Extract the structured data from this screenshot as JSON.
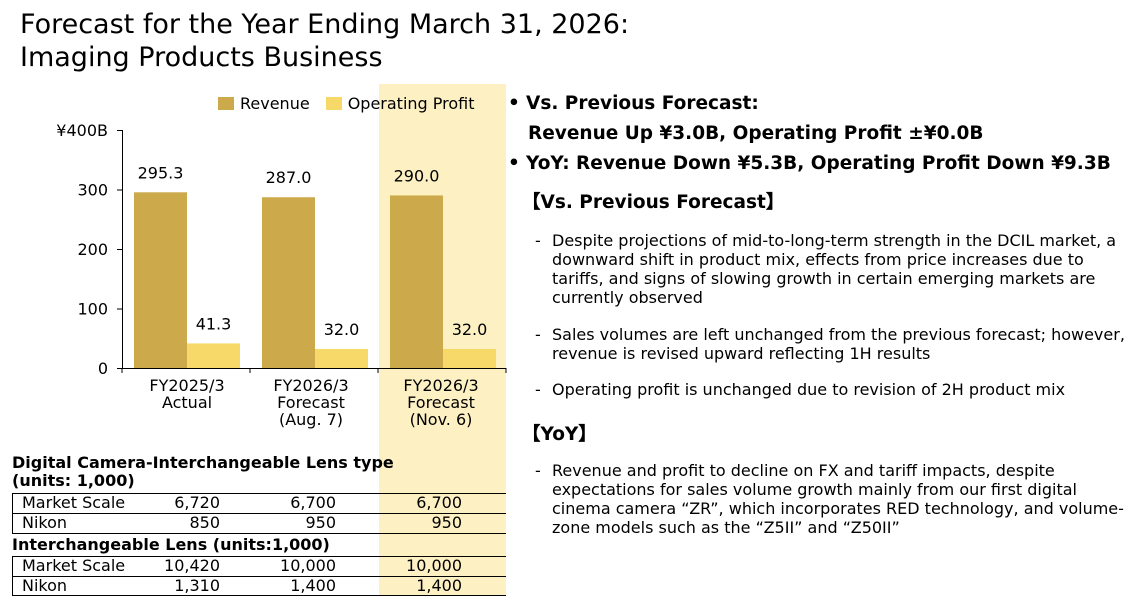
{
  "header": {
    "title_line1": "Forecast for the Year Ending March 31, 2026:",
    "title_line2": "Imaging Products Business"
  },
  "colors": {
    "revenue": "#cca94a",
    "operating_profit": "#f7d96a",
    "highlight": "#fdf1c4"
  },
  "chart_data": {
    "type": "bar",
    "categories": [
      "FY2025/3 Actual",
      "FY2026/3 Forecast (Aug. 7)",
      "FY2026/3 Forecast (Nov. 6)"
    ],
    "category_lines": [
      [
        "FY2025/3",
        "Actual"
      ],
      [
        "FY2026/3",
        "Forecast",
        "(Aug. 7)"
      ],
      [
        "FY2026/3",
        "Forecast",
        "(Nov. 6)"
      ]
    ],
    "series": [
      {
        "name": "Revenue",
        "values": [
          295.3,
          287.0,
          290.0
        ],
        "labels": [
          "295.3",
          "287.0",
          "290.0"
        ]
      },
      {
        "name": "Operating Profit",
        "values": [
          41.3,
          32.0,
          32.0
        ],
        "labels": [
          "41.3",
          "32.0",
          "32.0"
        ]
      }
    ],
    "yticks": [
      "¥400B",
      "300",
      "200",
      "100",
      "0"
    ],
    "ytick_values": [
      400,
      300,
      200,
      100,
      0
    ],
    "ylim": [
      0,
      400
    ],
    "legend_position": "top"
  },
  "tables": [
    {
      "title_line1": "Digital Camera-Interchangeable Lens type",
      "title_line2": "(units: 1,000)",
      "rows": [
        {
          "label": "Market Scale",
          "v1": "6,720",
          "v2": "6,700",
          "v3": "6,700"
        },
        {
          "label": "Nikon",
          "v1": "850",
          "v2": "950",
          "v3": "950"
        }
      ]
    },
    {
      "title_line1": "Interchangeable Lens (units:1,000)",
      "rows": [
        {
          "label": "Market Scale",
          "v1": "10,420",
          "v2": "10,000",
          "v3": "10,000"
        },
        {
          "label": "Nikon",
          "v1": "1,310",
          "v2": "1,400",
          "v3": "1,400"
        }
      ]
    }
  ],
  "summary": {
    "bullet1_line1": "Vs. Previous Forecast:",
    "bullet1_line2": "Revenue Up ¥3.0B, Operating Profit ±¥0.0B",
    "bullet2": "YoY: Revenue Down ¥5.3B, Operating Profit Down ¥9.3B",
    "bullet_glyph": "•",
    "dash_glyph": "-"
  },
  "vs_previous": {
    "heading": "【Vs. Previous Forecast】",
    "items": [
      "Despite projections of mid-to-long-term strength in the DCIL market, a downward shift in product mix, effects from price increases due to tariffs, and signs of slowing growth in certain emerging markets are currently observed",
      "Sales volumes are left unchanged from the previous forecast; however, revenue is revised upward reflecting 1H results",
      "Operating profit is unchanged due to revision of 2H product mix"
    ]
  },
  "yoy": {
    "heading": "【YoY】",
    "items": [
      "Revenue and profit to decline on FX and tariff impacts, despite expectations for sales volume growth mainly from our first digital cinema camera “ZR”, which incorporates RED technology, and volume-zone models such as the “Z5II” and “Z50II”"
    ]
  }
}
